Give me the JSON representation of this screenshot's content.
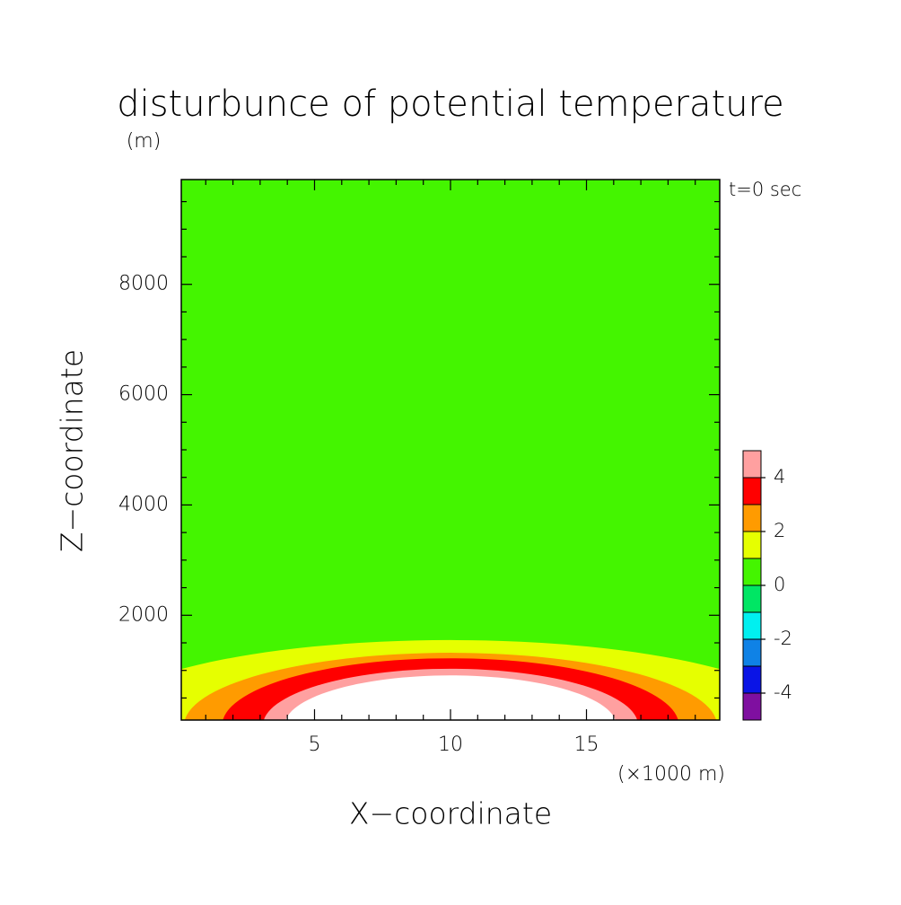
{
  "chart_data": {
    "type": "contour",
    "title": "disturbunce of potential temperature",
    "y_unit": "(m)",
    "x_unit": "(×1000 m)",
    "xlabel": "X−coordinate",
    "ylabel": "Z−coordinate",
    "annotation": "t=0 sec",
    "xlim": [
      0.1,
      19.9
    ],
    "ylim": [
      100,
      9900
    ],
    "xticks": [
      5,
      10,
      15
    ],
    "yticks": [
      2000,
      4000,
      6000,
      8000
    ],
    "xminorticks": [
      1,
      2,
      3,
      4,
      6,
      7,
      8,
      9,
      11,
      12,
      13,
      14,
      16,
      17,
      18,
      19
    ],
    "yminorticks": [
      500,
      1000,
      1500,
      2500,
      3000,
      3500,
      4500,
      5000,
      5500,
      6500,
      7000,
      7500,
      8500,
      9000,
      9500
    ],
    "center_x": 10,
    "background_level": 0,
    "contours": [
      {
        "level": 1,
        "x_halfwidth": 13.2,
        "z_top": 1550
      },
      {
        "level": 2,
        "x_halfwidth": 9.8,
        "z_top": 1320
      },
      {
        "level": 3,
        "x_halfwidth": 8.4,
        "z_top": 1220
      },
      {
        "level": 4,
        "x_halfwidth": 6.9,
        "z_top": 1030
      },
      {
        "level": 5,
        "x_halfwidth": 6.1,
        "z_top": 910
      }
    ],
    "colorbar": {
      "levels": [
        -5,
        -4,
        -3,
        -2,
        -1,
        0,
        1,
        2,
        3,
        4,
        5
      ],
      "colors": [
        "#7f0fa0",
        "#0a14e6",
        "#0f82e6",
        "#00f0f0",
        "#00e664",
        "#44f500",
        "#e6ff00",
        "#ff9b00",
        "#ff0000",
        "#ffa0a0"
      ],
      "above_color": "#ffffff",
      "ticks": [
        -4,
        -2,
        0,
        2,
        4
      ]
    }
  }
}
